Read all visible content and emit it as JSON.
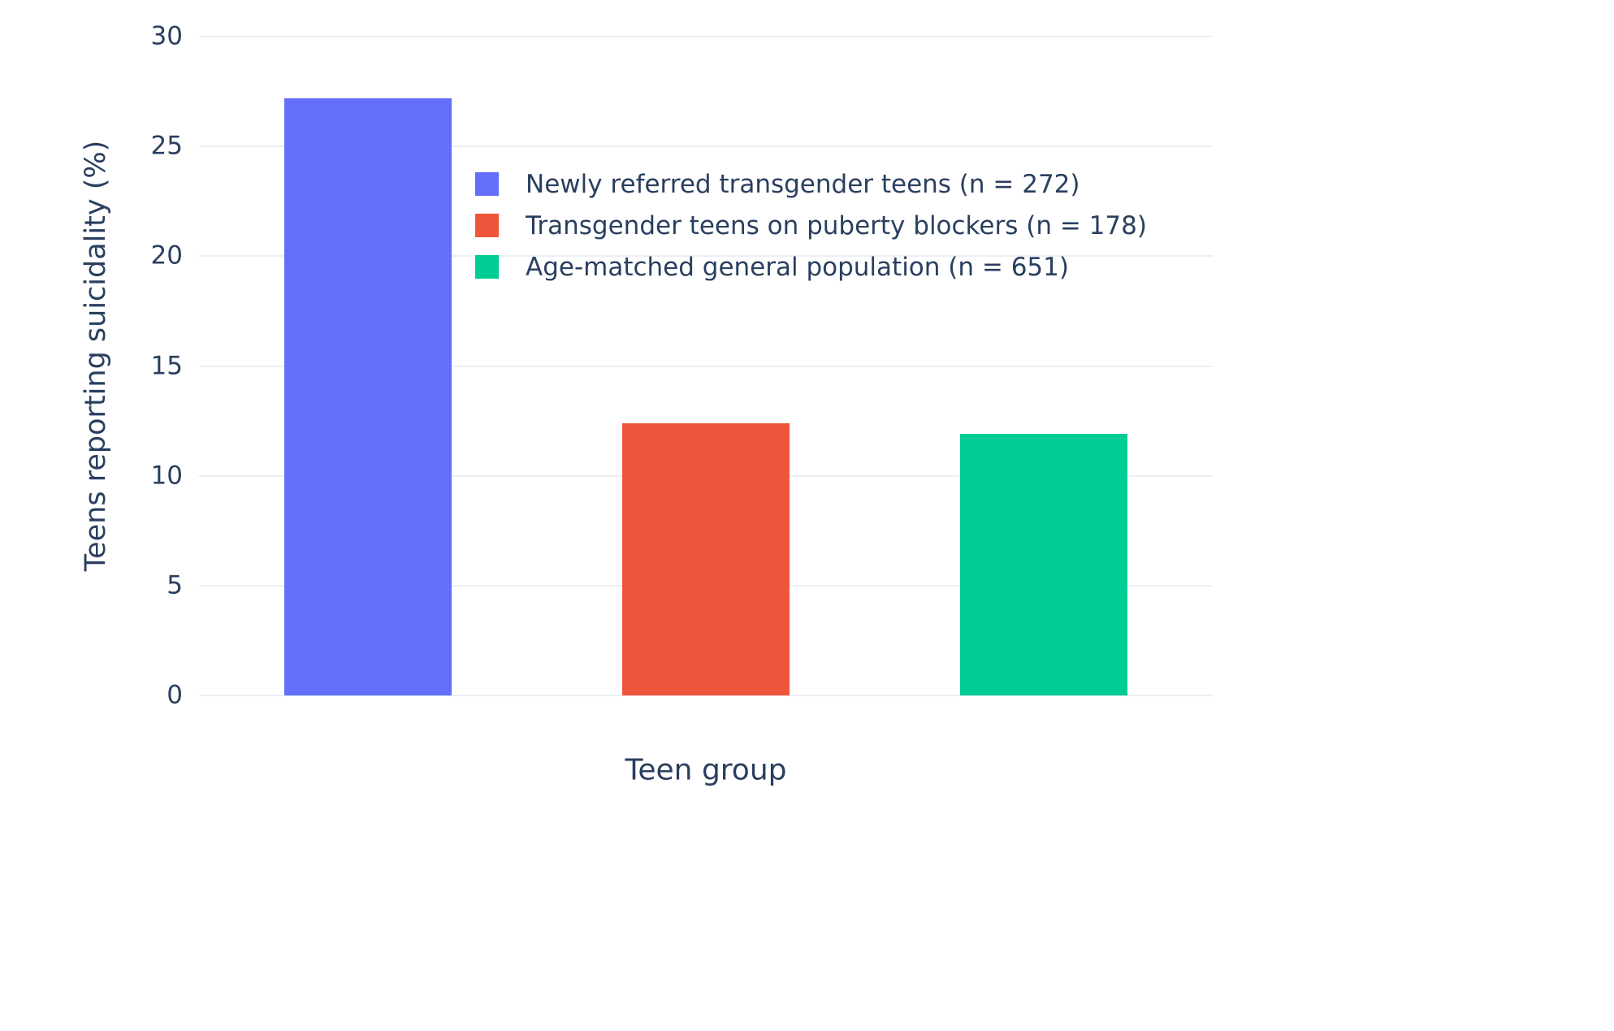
{
  "chart_data": {
    "type": "bar",
    "title": "",
    "xlabel": "Teen group",
    "ylabel": "Teens reporting suicidality (%)",
    "ylim": [
      0,
      30
    ],
    "yticks": [
      0,
      5,
      10,
      15,
      20,
      25,
      30
    ],
    "grid": true,
    "legend_position": "upper-center",
    "background_color": "#ffffff",
    "series": [
      {
        "name": "Newly referred transgender teens (n = 272)",
        "value": 27.2,
        "color": "#636EFA"
      },
      {
        "name": "Transgender teens on puberty blockers (n = 178)",
        "value": 12.4,
        "color": "#EF553B"
      },
      {
        "name": "Age-matched general population (n = 651)",
        "value": 11.9,
        "color": "#00CC96"
      }
    ]
  }
}
